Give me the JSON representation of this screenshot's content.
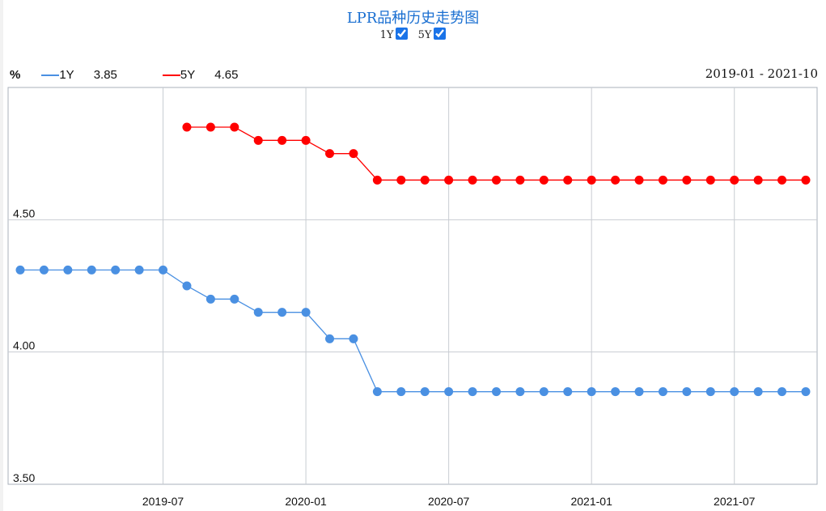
{
  "title": "LPR品种历史走势图",
  "toggles": [
    {
      "label": "1Y",
      "checked": true
    },
    {
      "label": "5Y",
      "checked": true
    }
  ],
  "legend": {
    "unit": "%",
    "items": [
      {
        "name": "1Y",
        "value": "3.85",
        "color": "#4a90e2"
      },
      {
        "name": "5Y",
        "value": "4.65",
        "color": "#ff0000"
      }
    ]
  },
  "date_range": "2019-01 - 2021-10",
  "chart_data": {
    "type": "line",
    "x_start": "2019-01",
    "x_end": "2021-10",
    "x_unit": "month",
    "ylim": [
      3.5,
      5.0
    ],
    "yticks": [
      "3.50",
      "4.00",
      "4.50"
    ],
    "xticks": [
      "2019-07",
      "2020-01",
      "2020-07",
      "2021-01",
      "2021-07"
    ],
    "grid": true,
    "series": [
      {
        "name": "1Y",
        "color": "#4a90e2",
        "start": "2019-01",
        "values": [
          4.31,
          4.31,
          4.31,
          4.31,
          4.31,
          4.31,
          4.31,
          4.25,
          4.2,
          4.2,
          4.15,
          4.15,
          4.15,
          4.05,
          4.05,
          3.85,
          3.85,
          3.85,
          3.85,
          3.85,
          3.85,
          3.85,
          3.85,
          3.85,
          3.85,
          3.85,
          3.85,
          3.85,
          3.85,
          3.85,
          3.85,
          3.85,
          3.85,
          3.85
        ]
      },
      {
        "name": "5Y",
        "color": "#ff0000",
        "start": "2019-08",
        "values": [
          4.85,
          4.85,
          4.85,
          4.8,
          4.8,
          4.8,
          4.75,
          4.75,
          4.65,
          4.65,
          4.65,
          4.65,
          4.65,
          4.65,
          4.65,
          4.65,
          4.65,
          4.65,
          4.65,
          4.65,
          4.65,
          4.65,
          4.65,
          4.65,
          4.65,
          4.65,
          4.65
        ]
      }
    ]
  }
}
